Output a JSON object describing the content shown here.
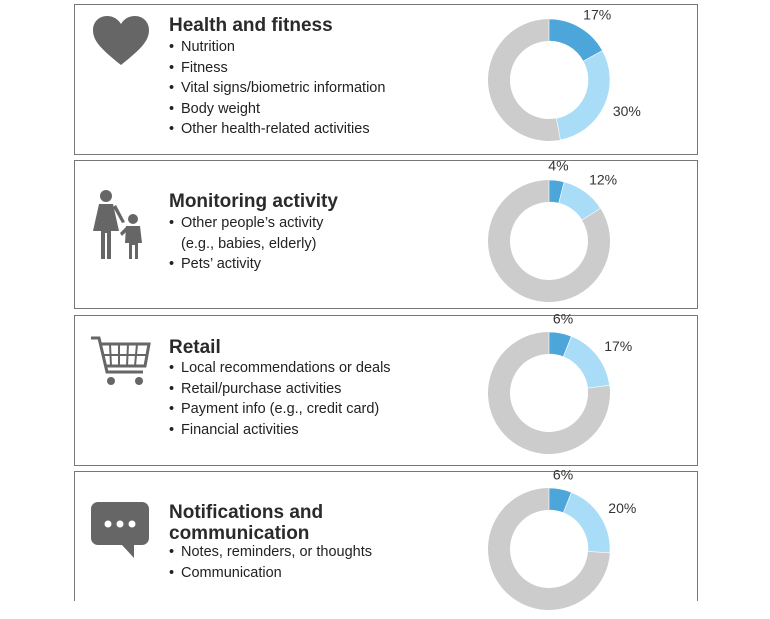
{
  "colors": {
    "dark": "#4da6d9",
    "light": "#a8dcf7",
    "rest": "#cccccc",
    "icon": "#666666"
  },
  "chart_data": [
    {
      "type": "pie",
      "title": "Health and fitness",
      "items": [
        "Nutrition",
        "Fitness",
        "Vital signs/biometric information",
        "Body weight",
        "Other health-related activities"
      ],
      "icon": "heart-icon",
      "slices": [
        {
          "value": 17,
          "label": "17%"
        },
        {
          "value": 30,
          "label": "30%"
        }
      ]
    },
    {
      "type": "pie",
      "title": "Monitoring activity",
      "items": [
        "Other people’s activity (e.g., babies, elderly)",
        "Pets’ activity"
      ],
      "item_lines": [
        [
          "Other people’s activity",
          "(e.g., babies, elderly)"
        ],
        [
          "Pets’ activity"
        ]
      ],
      "icon": "parent-child-icon",
      "slices": [
        {
          "value": 4,
          "label": "4%"
        },
        {
          "value": 12,
          "label": "12%"
        }
      ]
    },
    {
      "type": "pie",
      "title": "Retail",
      "items": [
        "Local recommendations or deals",
        "Retail/purchase activities",
        "Payment info (e.g., credit card)",
        "Financial activities"
      ],
      "icon": "shopping-cart-icon",
      "slices": [
        {
          "value": 6,
          "label": "6%"
        },
        {
          "value": 17,
          "label": "17%"
        }
      ]
    },
    {
      "type": "pie",
      "title": "Notifications and communication",
      "title_lines": [
        "Notifications and",
        "communication"
      ],
      "items": [
        "Notes, reminders, or thoughts",
        "Communication"
      ],
      "icon": "chat-bubble-icon",
      "slices": [
        {
          "value": 6,
          "label": "6%"
        },
        {
          "value": 20,
          "label": "20%"
        }
      ]
    }
  ]
}
